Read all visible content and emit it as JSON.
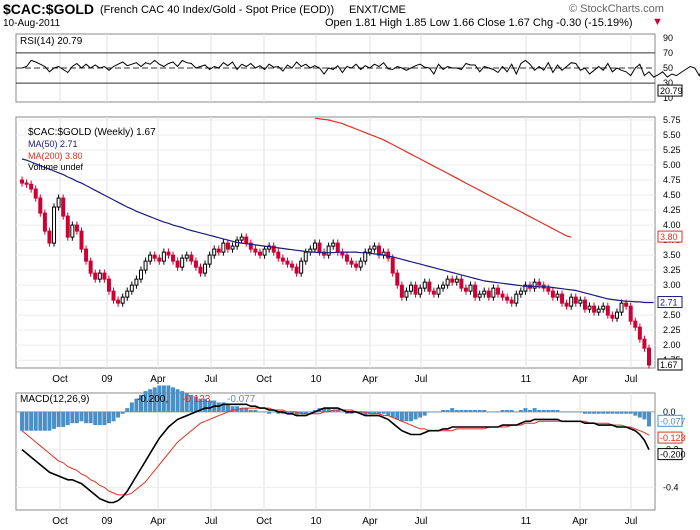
{
  "header": {
    "symbol": "$CAC:$GOLD",
    "description": "(French CAC 40 Index/Gold - Spot Price (EOD))",
    "exchange": "ENXT/CME",
    "date": "10-Aug-2011",
    "watermark": "© StockCharts.com",
    "quote": "Open 1.81  High 1.85  Low 1.66  Close 1.67  Chg -0.30 (-15.19%)",
    "down_arrow": "▼"
  },
  "colors": {
    "price_up": "#000000",
    "price_down": "#cc0033",
    "ma50": "#1a1a80",
    "ma200": "#e03020",
    "macd_line": "#000000",
    "signal_line": "#e03020",
    "histogram": "#4a90c8",
    "rsi_line": "#000000"
  },
  "chart_data": [
    {
      "type": "line",
      "panel": "rsi",
      "label": "RSI(14) 20.79",
      "y_ticks": [
        10,
        30,
        50,
        70,
        90
      ],
      "ylim": [
        5,
        95
      ],
      "reference_levels": [
        30,
        50,
        70
      ],
      "last_value": "20.79",
      "series": [
        {
          "name": "RSI(14)",
          "values": [
            50,
            52,
            60,
            58,
            55,
            52,
            45,
            50,
            52,
            48,
            44,
            52,
            56,
            50,
            55,
            50,
            54,
            50,
            52,
            47,
            52,
            55,
            58,
            53,
            55,
            57,
            52,
            57,
            55,
            60,
            55,
            52,
            56,
            58,
            52,
            60,
            57,
            56,
            50,
            52,
            54,
            48,
            52,
            50,
            57,
            53,
            58,
            48,
            55,
            52,
            56,
            50,
            53,
            48,
            55,
            51,
            52,
            46,
            54,
            50,
            58,
            52,
            55,
            50,
            53,
            50,
            42,
            50,
            48,
            53,
            44,
            52,
            50,
            55,
            48,
            53,
            50,
            55,
            52,
            57,
            49,
            48,
            52,
            50,
            47,
            50,
            53,
            55,
            51,
            50,
            42,
            55,
            48,
            52,
            50,
            50,
            48,
            56,
            54,
            54,
            45,
            52,
            50,
            48,
            44,
            52,
            45,
            55,
            42,
            56,
            60,
            55,
            47,
            52,
            47,
            57,
            44,
            54,
            47,
            52,
            57,
            56,
            47,
            50,
            42,
            47,
            52,
            47,
            56,
            45,
            50,
            47,
            45,
            40,
            50,
            55,
            40,
            45,
            38,
            41,
            45,
            38,
            42,
            40,
            44,
            48,
            52,
            50,
            40,
            55,
            47,
            35,
            25,
            20.79
          ]
        }
      ]
    },
    {
      "type": "candlestick",
      "panel": "price",
      "legend": [
        "$CAC:$GOLD (Weekly) 1.67",
        "MA(50) 2.71",
        "MA(200) 3.80",
        "Volume undef"
      ],
      "y_ticks": [
        "1.75",
        "2.00",
        "2.25",
        "2.50",
        "2.75",
        "3.00",
        "3.25",
        "3.50",
        "3.75",
        "4.00",
        "4.25",
        "4.50",
        "4.75",
        "5.00",
        "5.25",
        "5.50",
        "5.75"
      ],
      "ylim": [
        1.62,
        5.8
      ],
      "x_ticks": [
        "Oct",
        "09",
        "Apr",
        "Jul",
        "Oct",
        "10",
        "Apr",
        "Jul",
        "11",
        "Apr",
        "Jul"
      ],
      "last_labels": {
        "ma50": "2.71",
        "ma200": "3.80",
        "close": "1.67"
      },
      "close": [
        4.7,
        4.68,
        4.6,
        4.45,
        4.2,
        3.9,
        3.7,
        4.3,
        4.45,
        4.15,
        3.8,
        4.0,
        3.9,
        3.6,
        3.4,
        3.2,
        3.1,
        3.2,
        3.1,
        2.9,
        2.75,
        2.7,
        2.8,
        2.9,
        3.0,
        3.1,
        3.25,
        3.4,
        3.5,
        3.45,
        3.4,
        3.55,
        3.5,
        3.4,
        3.3,
        3.45,
        3.5,
        3.4,
        3.3,
        3.2,
        3.35,
        3.5,
        3.6,
        3.55,
        3.7,
        3.6,
        3.65,
        3.75,
        3.8,
        3.7,
        3.6,
        3.55,
        3.5,
        3.6,
        3.65,
        3.55,
        3.45,
        3.4,
        3.35,
        3.3,
        3.2,
        3.4,
        3.55,
        3.6,
        3.7,
        3.55,
        3.5,
        3.65,
        3.7,
        3.55,
        3.5,
        3.4,
        3.35,
        3.3,
        3.4,
        3.55,
        3.6,
        3.65,
        3.5,
        3.55,
        3.45,
        3.2,
        3.0,
        2.8,
        2.9,
        3.0,
        2.85,
        2.95,
        3.05,
        2.9,
        2.85,
        2.95,
        3.0,
        3.1,
        3.05,
        3.1,
        2.95,
        2.9,
        3.0,
        2.8,
        2.85,
        2.9,
        2.8,
        2.95,
        2.85,
        2.8,
        2.75,
        2.7,
        2.85,
        2.9,
        3.0,
        2.95,
        3.05,
        3.0,
        2.95,
        2.9,
        2.8,
        2.85,
        2.7,
        2.65,
        2.8,
        2.7,
        2.75,
        2.6,
        2.65,
        2.55,
        2.6,
        2.65,
        2.5,
        2.45,
        2.55,
        2.7,
        2.65,
        2.4,
        2.3,
        2.1,
        1.95,
        1.67
      ],
      "ma50": [
        5.1,
        5.08,
        5.05,
        5.02,
        4.99,
        4.96,
        4.93,
        4.9,
        4.87,
        4.84,
        4.8,
        4.77,
        4.73,
        4.7,
        4.66,
        4.62,
        4.58,
        4.54,
        4.5,
        4.46,
        4.42,
        4.38,
        4.34,
        4.3,
        4.27,
        4.23,
        4.2,
        4.17,
        4.14,
        4.11,
        4.08,
        4.05,
        4.03,
        4.0,
        3.98,
        3.96,
        3.93,
        3.91,
        3.89,
        3.87,
        3.85,
        3.83,
        3.81,
        3.79,
        3.77,
        3.75,
        3.73,
        3.71,
        3.7,
        3.69,
        3.68,
        3.67,
        3.66,
        3.65,
        3.64,
        3.63,
        3.62,
        3.61,
        3.6,
        3.59,
        3.58,
        3.57,
        3.56,
        3.55,
        3.55,
        3.54,
        3.54,
        3.54,
        3.54,
        3.55,
        3.55,
        3.55,
        3.55,
        3.55,
        3.54,
        3.54,
        3.53,
        3.52,
        3.51,
        3.5,
        3.48,
        3.47,
        3.45,
        3.43,
        3.41,
        3.39,
        3.37,
        3.35,
        3.33,
        3.31,
        3.29,
        3.27,
        3.25,
        3.23,
        3.21,
        3.19,
        3.17,
        3.15,
        3.13,
        3.11,
        3.09,
        3.07,
        3.06,
        3.05,
        3.04,
        3.03,
        3.02,
        3.01,
        3.0,
        2.99,
        2.98,
        2.98,
        2.98,
        2.97,
        2.97,
        2.97,
        2.96,
        2.95,
        2.94,
        2.93,
        2.92,
        2.91,
        2.89,
        2.87,
        2.85,
        2.83,
        2.81,
        2.79,
        2.77,
        2.76,
        2.75,
        2.74,
        2.73,
        2.73,
        2.72,
        2.72,
        2.71,
        2.71,
        2.71
      ],
      "ma200_start_index": 64,
      "ma200": [
        5.78,
        5.77,
        5.76,
        5.75,
        5.73,
        5.71,
        5.69,
        5.66,
        5.63,
        5.6,
        5.57,
        5.54,
        5.51,
        5.48,
        5.45,
        5.42,
        5.38,
        5.34,
        5.3,
        5.26,
        5.22,
        5.18,
        5.14,
        5.1,
        5.06,
        5.02,
        4.98,
        4.94,
        4.9,
        4.86,
        4.82,
        4.78,
        4.74,
        4.7,
        4.66,
        4.62,
        4.58,
        4.54,
        4.5,
        4.46,
        4.42,
        4.38,
        4.34,
        4.3,
        4.26,
        4.22,
        4.18,
        4.14,
        4.1,
        4.06,
        4.02,
        3.98,
        3.94,
        3.9,
        3.86,
        3.82,
        3.8
      ]
    },
    {
      "type": "line",
      "panel": "macd",
      "label_prefix": "MACD(12,26,9)",
      "label_macd": "-0.200",
      "label_signal": "-0.123",
      "label_hist": "-0.077",
      "y_ticks": [
        "0.0",
        "-0.2",
        "-0.4"
      ],
      "ylim": [
        -0.52,
        0.1
      ],
      "last_labels": {
        "hist": "-0.077",
        "signal": "-0.123",
        "macd": "-0.200"
      },
      "x_ticks": [
        "Oct",
        "09",
        "Apr",
        "Jul",
        "Oct",
        "10",
        "Apr",
        "Jul",
        "11",
        "Apr",
        "Jul"
      ],
      "series": [
        {
          "name": "MACD",
          "values": [
            -0.2,
            -0.22,
            -0.24,
            -0.26,
            -0.28,
            -0.3,
            -0.32,
            -0.33,
            -0.34,
            -0.35,
            -0.36,
            -0.36,
            -0.37,
            -0.38,
            -0.4,
            -0.42,
            -0.44,
            -0.46,
            -0.47,
            -0.48,
            -0.48,
            -0.47,
            -0.45,
            -0.42,
            -0.38,
            -0.34,
            -0.3,
            -0.26,
            -0.22,
            -0.18,
            -0.14,
            -0.11,
            -0.08,
            -0.06,
            -0.04,
            -0.03,
            -0.02,
            -0.01,
            0.0,
            0.01,
            0.02,
            0.02,
            0.03,
            0.03,
            0.04,
            0.04,
            0.04,
            0.04,
            0.04,
            0.04,
            0.03,
            0.03,
            0.02,
            0.02,
            0.01,
            0.01,
            0.0,
            0.0,
            -0.01,
            -0.01,
            -0.02,
            -0.02,
            -0.02,
            -0.01,
            0.0,
            0.01,
            0.02,
            0.02,
            0.02,
            0.02,
            0.01,
            0.0,
            0.0,
            0.0,
            -0.01,
            -0.02,
            -0.02,
            -0.02,
            -0.02,
            -0.03,
            -0.04,
            -0.06,
            -0.08,
            -0.1,
            -0.11,
            -0.12,
            -0.12,
            -0.12,
            -0.11,
            -0.1,
            -0.1,
            -0.1,
            -0.09,
            -0.09,
            -0.08,
            -0.08,
            -0.08,
            -0.08,
            -0.08,
            -0.08,
            -0.08,
            -0.08,
            -0.08,
            -0.08,
            -0.08,
            -0.07,
            -0.07,
            -0.07,
            -0.07,
            -0.06,
            -0.05,
            -0.05,
            -0.04,
            -0.04,
            -0.04,
            -0.04,
            -0.04,
            -0.04,
            -0.05,
            -0.05,
            -0.05,
            -0.05,
            -0.05,
            -0.06,
            -0.06,
            -0.06,
            -0.07,
            -0.07,
            -0.07,
            -0.07,
            -0.08,
            -0.08,
            -0.08,
            -0.09,
            -0.1,
            -0.12,
            -0.15,
            -0.2
          ]
        },
        {
          "name": "Signal",
          "values": [
            -0.1,
            -0.12,
            -0.14,
            -0.16,
            -0.18,
            -0.2,
            -0.22,
            -0.24,
            -0.26,
            -0.27,
            -0.29,
            -0.3,
            -0.31,
            -0.33,
            -0.34,
            -0.36,
            -0.37,
            -0.39,
            -0.4,
            -0.42,
            -0.43,
            -0.44,
            -0.44,
            -0.44,
            -0.43,
            -0.41,
            -0.39,
            -0.37,
            -0.34,
            -0.31,
            -0.28,
            -0.25,
            -0.22,
            -0.19,
            -0.16,
            -0.14,
            -0.12,
            -0.1,
            -0.08,
            -0.06,
            -0.05,
            -0.04,
            -0.03,
            -0.02,
            -0.01,
            0.0,
            0.01,
            0.01,
            0.02,
            0.02,
            0.02,
            0.02,
            0.02,
            0.02,
            0.02,
            0.01,
            0.01,
            0.01,
            0.0,
            0.0,
            0.0,
            -0.01,
            -0.01,
            -0.01,
            -0.01,
            -0.01,
            0.0,
            0.0,
            0.01,
            0.01,
            0.01,
            0.01,
            0.01,
            0.0,
            0.0,
            0.0,
            -0.01,
            -0.01,
            -0.01,
            -0.02,
            -0.02,
            -0.03,
            -0.04,
            -0.05,
            -0.06,
            -0.07,
            -0.08,
            -0.09,
            -0.09,
            -0.1,
            -0.1,
            -0.1,
            -0.1,
            -0.1,
            -0.1,
            -0.09,
            -0.09,
            -0.09,
            -0.09,
            -0.09,
            -0.09,
            -0.09,
            -0.08,
            -0.08,
            -0.08,
            -0.08,
            -0.08,
            -0.07,
            -0.07,
            -0.07,
            -0.06,
            -0.06,
            -0.06,
            -0.05,
            -0.05,
            -0.05,
            -0.05,
            -0.05,
            -0.05,
            -0.05,
            -0.05,
            -0.05,
            -0.05,
            -0.05,
            -0.06,
            -0.06,
            -0.06,
            -0.06,
            -0.06,
            -0.07,
            -0.07,
            -0.07,
            -0.08,
            -0.08,
            -0.09,
            -0.1,
            -0.11,
            -0.123
          ]
        },
        {
          "name": "Histogram",
          "values": [
            -0.1,
            -0.1,
            -0.1,
            -0.1,
            -0.1,
            -0.1,
            -0.1,
            -0.09,
            -0.08,
            -0.08,
            -0.07,
            -0.06,
            -0.06,
            -0.05,
            -0.06,
            -0.06,
            -0.07,
            -0.07,
            -0.07,
            -0.06,
            -0.05,
            -0.03,
            -0.01,
            0.02,
            0.05,
            0.07,
            0.09,
            0.11,
            0.12,
            0.13,
            0.14,
            0.14,
            0.14,
            0.13,
            0.12,
            0.11,
            0.1,
            0.09,
            0.08,
            0.07,
            0.07,
            0.06,
            0.06,
            0.05,
            0.05,
            0.04,
            0.03,
            0.03,
            0.02,
            0.02,
            0.01,
            0.01,
            0.0,
            0.0,
            -0.01,
            0.0,
            -0.01,
            -0.01,
            -0.01,
            -0.01,
            -0.02,
            -0.01,
            -0.01,
            0.0,
            0.01,
            0.02,
            0.02,
            0.02,
            0.01,
            0.01,
            0.0,
            -0.01,
            -0.01,
            0.0,
            -0.01,
            -0.02,
            -0.01,
            -0.01,
            -0.01,
            -0.01,
            -0.02,
            -0.03,
            -0.04,
            -0.05,
            -0.05,
            -0.05,
            -0.04,
            -0.03,
            -0.02,
            0.0,
            0.0,
            0.0,
            0.01,
            0.01,
            0.02,
            0.01,
            0.01,
            0.01,
            0.01,
            0.01,
            0.01,
            0.01,
            0.0,
            0.0,
            0.0,
            0.01,
            0.01,
            0.01,
            0.0,
            0.01,
            0.02,
            0.01,
            0.02,
            0.01,
            0.01,
            0.01,
            0.01,
            0.01,
            0.0,
            0.0,
            0.0,
            0.0,
            0.0,
            -0.01,
            -0.01,
            -0.01,
            -0.01,
            -0.01,
            -0.01,
            -0.01,
            -0.01,
            -0.01,
            -0.01,
            -0.01,
            -0.02,
            -0.03,
            -0.04,
            -0.077
          ]
        }
      ]
    }
  ]
}
